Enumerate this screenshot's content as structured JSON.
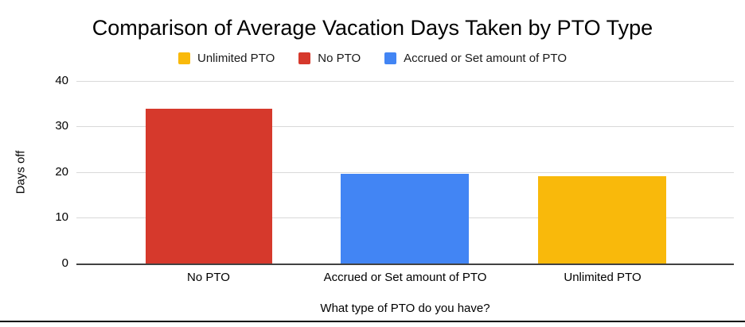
{
  "chart_data": {
    "type": "bar",
    "title": "Comparison of Average Vacation Days Taken by PTO Type",
    "xlabel": "What type of PTO do you have?",
    "ylabel": "Days off",
    "categories": [
      "No PTO",
      "Accrued or Set amount of PTO",
      "Unlimited PTO"
    ],
    "values": [
      34,
      19.6,
      19.1
    ],
    "bar_colors": [
      "#d6392c",
      "#4285f4",
      "#f9b90b"
    ],
    "ylim": [
      0,
      40
    ],
    "yticks": [
      "40",
      "30",
      "20",
      "10",
      "0"
    ],
    "grid": true,
    "legend": {
      "position": "top",
      "items": [
        {
          "label": "Unlimited PTO",
          "color": "#f9b90b"
        },
        {
          "label": "No PTO",
          "color": "#d6392c"
        },
        {
          "label": "Accrued or Set amount of PTO",
          "color": "#4285f4"
        }
      ]
    },
    "colors": {
      "gridline": "#d9d9d9",
      "axis_line": "#424242",
      "text": "#000000"
    }
  }
}
